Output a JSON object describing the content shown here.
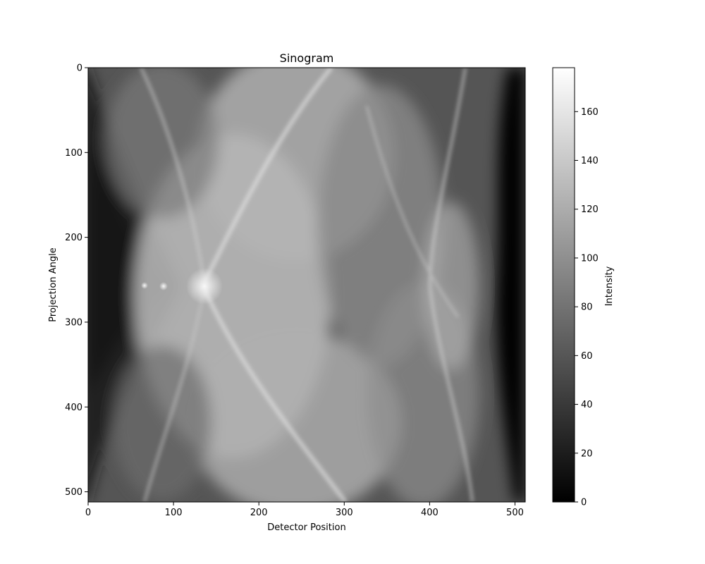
{
  "chart_data": {
    "type": "heatmap",
    "title": "Sinogram",
    "xlabel": "Detector Position",
    "ylabel": "Projection Angle",
    "xlim": [
      0,
      512
    ],
    "ylim": [
      512,
      0
    ],
    "y_axis_inverted": true,
    "colormap": "gray",
    "grid": false,
    "x_ticks": [
      0,
      100,
      200,
      300,
      400,
      500
    ],
    "y_ticks": [
      0,
      100,
      200,
      300,
      400,
      500
    ],
    "x_tick_labels": [
      "0",
      "100",
      "200",
      "300",
      "400",
      "500"
    ],
    "y_tick_labels": [
      "0",
      "100",
      "200",
      "300",
      "400",
      "500"
    ],
    "colorbar": {
      "label": "Intensity",
      "vmin": 0,
      "vmax": 178,
      "ticks": [
        0,
        20,
        40,
        60,
        80,
        100,
        120,
        140,
        160
      ],
      "tick_labels": [
        "0",
        "20",
        "40",
        "60",
        "80",
        "100",
        "120",
        "140",
        "160"
      ]
    }
  }
}
